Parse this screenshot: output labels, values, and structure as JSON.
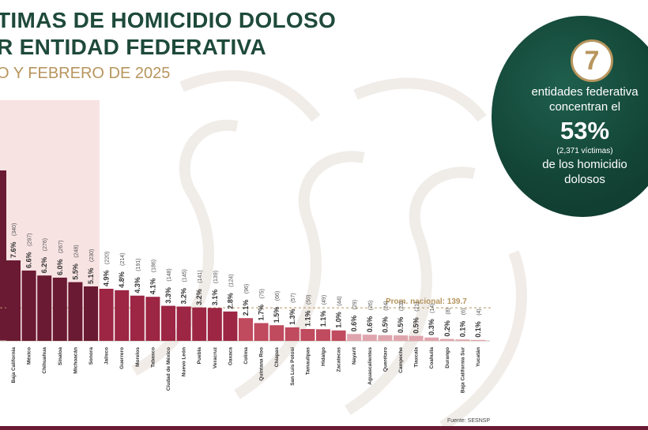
{
  "title_line1": "TIMAS DE HOMICIDIO DOLOSO",
  "title_line2": "R ENTIDAD FEDERATIVA",
  "subtitle": "O Y FEBRERO DE 2025",
  "callout": {
    "number": "7",
    "line1": "entidades federativa",
    "line2": "concentran el",
    "percent": "53%",
    "line3": "(2,371 víctimas)",
    "line4": "de los homicidio",
    "line5": "dolosos"
  },
  "source": "Fuente: SESNSP",
  "average_label": "Prom. nacional: 139.7",
  "colors": {
    "top7": "#6a1a33",
    "mid": "#9c2644",
    "low": "#c04a5e",
    "lowest": "#dfa5ae",
    "average_line": "#b7955d",
    "callout_bg": "#134536",
    "gold": "#b7955d"
  },
  "chart_data": {
    "type": "bar",
    "average": 139.7,
    "categories": [
      "",
      "Baja California",
      "México",
      "Chihuahua",
      "Sinaloa",
      "Michoacán",
      "Sonora",
      "Jalisco",
      "Guerrero",
      "Morelos",
      "Tabasco",
      "Ciudad de México",
      "Nuevo León",
      "Puebla",
      "Veracruz",
      "Oaxaca",
      "Colima",
      "Quintana Roo",
      "Chiapas",
      "San Luis Potosí",
      "Tamaulipas",
      "Hidalgo",
      "Zacatecas",
      "Nayarit",
      "Aguascalientes",
      "Querétaro",
      "Campeche",
      "Tlaxcala",
      "Coahuila",
      "Durango",
      "Baja California Sur",
      "Yucatán"
    ],
    "values": [
      null,
      340,
      297,
      276,
      267,
      248,
      230,
      220,
      214,
      191,
      186,
      148,
      145,
      141,
      139,
      124,
      96,
      75,
      66,
      57,
      50,
      49,
      44,
      29,
      26,
      24,
      23,
      21,
      14,
      8,
      6,
      4
    ],
    "percent_labels": [
      "",
      "7.6%",
      "6.6%",
      "6.2%",
      "6.0%",
      "5.5%",
      "5.1%",
      "4.9%",
      "4.8%",
      "4.3%",
      "4.1%",
      "3.3%",
      "3.2%",
      "3.2%",
      "3.1%",
      "2.8%",
      "2.1%",
      "1.7%",
      "1.5%",
      "1.3%",
      "1.1%",
      "1.1%",
      "1.0%",
      "0.6%",
      "0.6%",
      "0.5%",
      "0.5%",
      "0.5%",
      "0.3%",
      "0.2%",
      "0.1%",
      "0.1%"
    ],
    "count_labels": [
      "",
      "(340)",
      "(297)",
      "(276)",
      "(267)",
      "(248)",
      "(230)",
      "(220)",
      "(214)",
      "(191)",
      "(186)",
      "(148)",
      "(145)",
      "(141)",
      "(139)",
      "(124)",
      "(96)",
      "(75)",
      "(66)",
      "(57)",
      "(50)",
      "(49)",
      "(44)",
      "(29)",
      "(26)",
      "(24)",
      "(23)",
      "(21)",
      "(14)",
      "(8)",
      "(6)",
      "(4)"
    ]
  }
}
